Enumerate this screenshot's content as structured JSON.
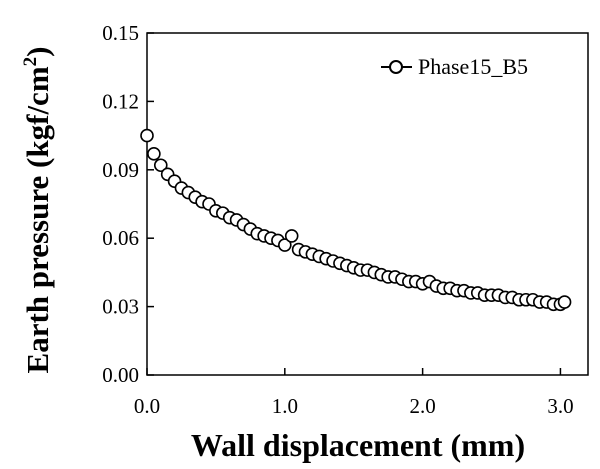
{
  "chart_data": {
    "type": "scatter",
    "xlabel": "Wall displacement (mm)",
    "ylabel": {
      "main": "Earth pressure (kgf/cm",
      "sup": "2",
      "end": ")"
    },
    "xlim": [
      0,
      3.2
    ],
    "ylim": [
      0,
      0.15
    ],
    "x_ticks": [
      "0.0",
      "1.0",
      "2.0",
      "3.0"
    ],
    "x_tick_values": [
      0,
      1,
      2,
      3
    ],
    "y_ticks": [
      "0.00",
      "0.03",
      "0.06",
      "0.09",
      "0.12",
      "0.15"
    ],
    "y_tick_values": [
      0,
      0.03,
      0.06,
      0.09,
      0.12,
      0.15
    ],
    "grid": false,
    "legend_placement": "top-right",
    "marker": "open-circle",
    "series": [
      {
        "name": "Phase15_B5",
        "x": [
          0.0,
          0.05,
          0.1,
          0.15,
          0.2,
          0.25,
          0.3,
          0.35,
          0.4,
          0.45,
          0.5,
          0.55,
          0.6,
          0.65,
          0.7,
          0.75,
          0.8,
          0.85,
          0.9,
          0.95,
          1.0,
          1.05,
          1.1,
          1.15,
          1.2,
          1.25,
          1.3,
          1.35,
          1.4,
          1.45,
          1.5,
          1.55,
          1.6,
          1.65,
          1.7,
          1.75,
          1.8,
          1.85,
          1.9,
          1.95,
          2.0,
          2.05,
          2.1,
          2.15,
          2.2,
          2.25,
          2.3,
          2.35,
          2.4,
          2.45,
          2.5,
          2.55,
          2.6,
          2.65,
          2.7,
          2.75,
          2.8,
          2.85,
          2.9,
          2.95,
          3.0,
          3.03
        ],
        "y": [
          0.105,
          0.097,
          0.092,
          0.088,
          0.085,
          0.082,
          0.08,
          0.078,
          0.076,
          0.075,
          0.072,
          0.071,
          0.069,
          0.068,
          0.066,
          0.064,
          0.062,
          0.061,
          0.06,
          0.059,
          0.057,
          0.061,
          0.055,
          0.054,
          0.053,
          0.052,
          0.051,
          0.05,
          0.049,
          0.048,
          0.047,
          0.046,
          0.046,
          0.045,
          0.044,
          0.043,
          0.043,
          0.042,
          0.041,
          0.041,
          0.04,
          0.041,
          0.039,
          0.038,
          0.038,
          0.037,
          0.037,
          0.036,
          0.036,
          0.035,
          0.035,
          0.035,
          0.034,
          0.034,
          0.033,
          0.033,
          0.033,
          0.032,
          0.032,
          0.031,
          0.031,
          0.032
        ]
      }
    ]
  }
}
